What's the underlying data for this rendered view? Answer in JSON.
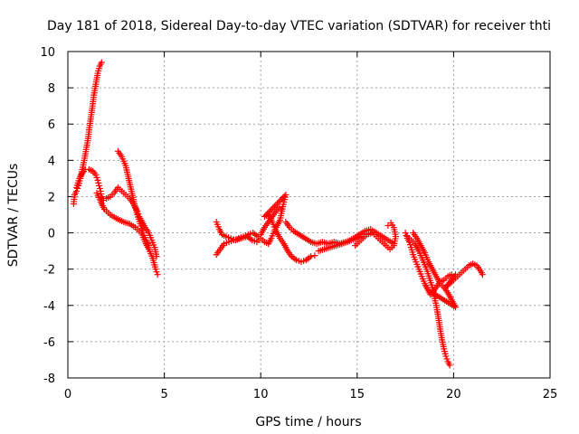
{
  "chart_data": {
    "type": "scatter",
    "title": "Day 181 of 2018, Sidereal Day-to-day VTEC variation (SDTVAR) for receiver thti",
    "xlabel": "GPS time / hours",
    "ylabel": "SDTVAR / TECUs",
    "xlim": [
      0,
      25
    ],
    "ylim": [
      -8,
      10
    ],
    "xticks": [
      0,
      5,
      10,
      15,
      20,
      25
    ],
    "yticks": [
      -8,
      -6,
      -4,
      -2,
      0,
      2,
      4,
      6,
      8,
      10
    ],
    "grid": true,
    "marker": "+",
    "color": "#ff0000",
    "series": [
      {
        "points": [
          [
            0.3,
            1.6
          ],
          [
            0.35,
            2.1
          ],
          [
            0.45,
            2.3
          ],
          [
            0.55,
            2.6
          ],
          [
            0.65,
            3.0
          ],
          [
            0.75,
            3.5
          ],
          [
            0.85,
            4.0
          ],
          [
            0.95,
            4.6
          ],
          [
            1.05,
            5.2
          ],
          [
            1.12,
            5.8
          ],
          [
            1.2,
            6.4
          ],
          [
            1.28,
            7.0
          ],
          [
            1.35,
            7.6
          ],
          [
            1.45,
            8.2
          ],
          [
            1.55,
            8.8
          ],
          [
            1.65,
            9.2
          ],
          [
            1.75,
            9.4
          ],
          [
            0.45,
            2.5
          ],
          [
            0.6,
            3.0
          ],
          [
            0.75,
            3.3
          ],
          [
            0.9,
            3.5
          ],
          [
            1.1,
            3.5
          ],
          [
            1.3,
            3.4
          ],
          [
            1.45,
            3.2
          ],
          [
            1.55,
            2.9
          ],
          [
            1.62,
            2.6
          ],
          [
            1.7,
            2.3
          ],
          [
            1.75,
            2.0
          ],
          [
            1.85,
            1.8
          ],
          [
            2.0,
            1.9
          ],
          [
            2.2,
            2.0
          ],
          [
            2.4,
            2.2
          ],
          [
            2.6,
            2.5
          ],
          [
            2.8,
            2.3
          ],
          [
            3.0,
            2.1
          ],
          [
            3.2,
            1.9
          ],
          [
            3.4,
            1.6
          ],
          [
            3.6,
            1.2
          ],
          [
            3.7,
            0.9
          ],
          [
            3.85,
            0.6
          ],
          [
            4.0,
            0.3
          ],
          [
            4.2,
            0.0
          ],
          [
            4.35,
            -0.4
          ],
          [
            4.5,
            -0.8
          ],
          [
            4.6,
            -1.3
          ],
          [
            1.5,
            2.2
          ],
          [
            1.7,
            1.7
          ],
          [
            1.9,
            1.3
          ],
          [
            2.2,
            1.0
          ],
          [
            2.5,
            0.8
          ],
          [
            2.9,
            0.6
          ],
          [
            3.2,
            0.5
          ],
          [
            3.5,
            0.3
          ],
          [
            3.8,
            0.0
          ],
          [
            4.0,
            -0.5
          ],
          [
            4.2,
            -0.9
          ],
          [
            4.4,
            -1.4
          ],
          [
            4.55,
            -2.0
          ],
          [
            4.65,
            -2.3
          ],
          [
            2.6,
            4.5
          ],
          [
            2.8,
            4.2
          ],
          [
            3.0,
            3.7
          ],
          [
            3.15,
            3.0
          ],
          [
            3.3,
            2.3
          ],
          [
            3.45,
            1.6
          ],
          [
            3.6,
            1.0
          ],
          [
            3.75,
            0.5
          ],
          [
            3.9,
            0.0
          ],
          [
            4.05,
            -0.4
          ],
          [
            4.2,
            -0.7
          ]
        ]
      },
      {
        "points": [
          [
            7.7,
            -1.2
          ],
          [
            7.9,
            -0.9
          ],
          [
            8.1,
            -0.6
          ],
          [
            8.35,
            -0.5
          ],
          [
            8.6,
            -0.4
          ],
          [
            8.85,
            -0.3
          ],
          [
            9.1,
            -0.2
          ],
          [
            9.35,
            -0.1
          ],
          [
            9.6,
            0.0
          ],
          [
            9.85,
            -0.2
          ],
          [
            10.0,
            -0.1
          ],
          [
            10.2,
            0.3
          ],
          [
            10.4,
            0.6
          ],
          [
            10.6,
            0.9
          ],
          [
            10.8,
            1.2
          ],
          [
            10.95,
            1.4
          ],
          [
            11.05,
            1.3
          ],
          [
            7.7,
            0.6
          ],
          [
            7.85,
            0.2
          ],
          [
            8.0,
            -0.1
          ],
          [
            8.2,
            -0.2
          ],
          [
            8.45,
            -0.3
          ],
          [
            8.7,
            -0.4
          ],
          [
            9.0,
            -0.3
          ],
          [
            9.3,
            -0.2
          ],
          [
            9.55,
            -0.4
          ],
          [
            9.8,
            -0.5
          ],
          [
            10.0,
            -0.3
          ],
          [
            10.2,
            -0.5
          ],
          [
            10.4,
            -0.6
          ],
          [
            10.55,
            -0.3
          ],
          [
            10.7,
            0.1
          ],
          [
            10.85,
            0.4
          ],
          [
            11.0,
            0.7
          ],
          [
            11.1,
            1.2
          ],
          [
            11.2,
            1.7
          ],
          [
            11.3,
            2.1
          ],
          [
            10.2,
            0.9
          ],
          [
            10.4,
            1.0
          ],
          [
            10.6,
            0.6
          ],
          [
            10.75,
            0.2
          ],
          [
            10.9,
            -0.1
          ],
          [
            11.0,
            -0.3
          ],
          [
            11.2,
            -0.6
          ],
          [
            11.4,
            -1.0
          ],
          [
            11.6,
            -1.3
          ],
          [
            11.85,
            -1.5
          ],
          [
            12.1,
            -1.6
          ],
          [
            12.35,
            -1.5
          ],
          [
            12.6,
            -1.3
          ],
          [
            12.8,
            -1.25
          ],
          [
            11.3,
            0.6
          ],
          [
            11.5,
            0.3
          ],
          [
            11.7,
            0.1
          ],
          [
            12.6,
            -0.5
          ],
          [
            12.9,
            -0.6
          ],
          [
            13.2,
            -0.5
          ],
          [
            13.5,
            -0.6
          ],
          [
            13.8,
            -0.5
          ],
          [
            14.1,
            -0.6
          ],
          [
            14.4,
            -0.5
          ],
          [
            14.7,
            -0.4
          ],
          [
            15.0,
            -0.3
          ],
          [
            15.3,
            -0.2
          ],
          [
            13.0,
            -1.0
          ],
          [
            13.3,
            -0.9
          ],
          [
            13.6,
            -0.8
          ],
          [
            13.9,
            -0.7
          ],
          [
            14.2,
            -0.6
          ],
          [
            14.5,
            -0.5
          ],
          [
            14.8,
            -0.3
          ],
          [
            15.1,
            -0.1
          ],
          [
            15.4,
            0.1
          ],
          [
            15.7,
            0.2
          ],
          [
            16.0,
            0.0
          ],
          [
            16.3,
            -0.2
          ],
          [
            16.6,
            -0.4
          ],
          [
            16.9,
            -0.6
          ],
          [
            14.9,
            -0.7
          ],
          [
            15.2,
            -0.4
          ],
          [
            15.5,
            -0.1
          ],
          [
            15.8,
            0.0
          ],
          [
            16.1,
            -0.3
          ],
          [
            16.4,
            -0.6
          ],
          [
            16.7,
            -0.9
          ],
          [
            16.9,
            -0.7
          ],
          [
            17.0,
            -0.2
          ],
          [
            16.9,
            0.3
          ],
          [
            16.75,
            0.55
          ],
          [
            16.6,
            0.4
          ]
        ]
      },
      {
        "points": [
          [
            17.5,
            0.0
          ],
          [
            17.6,
            -0.3
          ],
          [
            17.7,
            -0.5
          ],
          [
            17.8,
            -0.8
          ],
          [
            17.9,
            -1.2
          ],
          [
            18.05,
            -1.6
          ],
          [
            18.2,
            -2.0
          ],
          [
            18.35,
            -2.4
          ],
          [
            18.5,
            -2.8
          ],
          [
            18.65,
            -3.1
          ],
          [
            18.8,
            -3.4
          ],
          [
            17.6,
            -0.2
          ],
          [
            17.8,
            -0.4
          ],
          [
            18.0,
            -0.6
          ],
          [
            18.2,
            -1.0
          ],
          [
            18.4,
            -1.5
          ],
          [
            18.6,
            -2.0
          ],
          [
            18.75,
            -2.5
          ],
          [
            18.9,
            -3.0
          ],
          [
            19.0,
            -3.5
          ],
          [
            19.1,
            -4.0
          ],
          [
            19.2,
            -4.6
          ],
          [
            19.3,
            -5.3
          ],
          [
            19.4,
            -5.9
          ],
          [
            19.5,
            -6.4
          ],
          [
            19.6,
            -6.8
          ],
          [
            19.7,
            -7.1
          ],
          [
            19.8,
            -7.3
          ],
          [
            17.9,
            0.0
          ],
          [
            18.1,
            -0.3
          ],
          [
            18.3,
            -0.7
          ],
          [
            18.5,
            -1.1
          ],
          [
            18.7,
            -1.6
          ],
          [
            18.9,
            -2.0
          ],
          [
            19.1,
            -2.4
          ],
          [
            19.3,
            -2.8
          ],
          [
            19.5,
            -3.0
          ],
          [
            19.7,
            -3.3
          ],
          [
            19.85,
            -3.6
          ],
          [
            20.0,
            -3.9
          ],
          [
            20.1,
            -4.1
          ],
          [
            18.9,
            -3.3
          ],
          [
            19.1,
            -3.0
          ],
          [
            19.3,
            -2.7
          ],
          [
            19.5,
            -2.6
          ],
          [
            19.7,
            -2.4
          ],
          [
            19.9,
            -2.3
          ],
          [
            20.1,
            -2.3
          ],
          [
            19.6,
            -3.0
          ],
          [
            19.8,
            -2.8
          ],
          [
            20.0,
            -2.6
          ],
          [
            20.2,
            -2.4
          ],
          [
            20.4,
            -2.2
          ],
          [
            20.6,
            -2.0
          ],
          [
            20.8,
            -1.8
          ],
          [
            21.0,
            -1.7
          ],
          [
            21.2,
            -1.8
          ],
          [
            21.4,
            -2.1
          ],
          [
            21.5,
            -2.3
          ]
        ]
      }
    ]
  }
}
